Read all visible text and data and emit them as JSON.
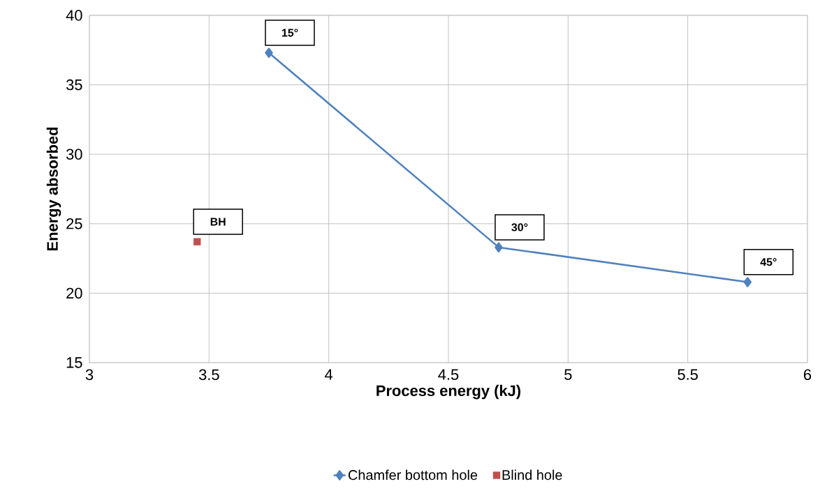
{
  "chart_data": {
    "type": "line",
    "xlabel": "Process energy (kJ)",
    "ylabel": "Energy absorbed",
    "xlim": [
      3,
      6
    ],
    "xticks": [
      3,
      3.5,
      4,
      4.5,
      5,
      5.5,
      6
    ],
    "ylim": [
      15,
      40
    ],
    "yticks": [
      15,
      20,
      25,
      30,
      35,
      40
    ],
    "grid": true,
    "legend": "bottom",
    "series": [
      {
        "name": "Chamfer bottom hole",
        "marker": "diamond",
        "color": "#4f81bd",
        "x": [
          3.75,
          4.71,
          5.75
        ],
        "values": [
          37.3,
          23.3,
          20.8
        ]
      },
      {
        "name": "Blind hole",
        "type": "scatter",
        "marker": "square",
        "color": "#c0504d",
        "x": [
          3.45
        ],
        "values": [
          23.7
        ]
      }
    ],
    "annotations": [
      {
        "text": "15°",
        "x": 3.75,
        "y": 37.3
      },
      {
        "text": "30°",
        "x": 4.71,
        "y": 23.3
      },
      {
        "text": "45°",
        "x": 5.75,
        "y": 20.8
      },
      {
        "text": "BH",
        "x": 3.45,
        "y": 23.7
      }
    ]
  }
}
